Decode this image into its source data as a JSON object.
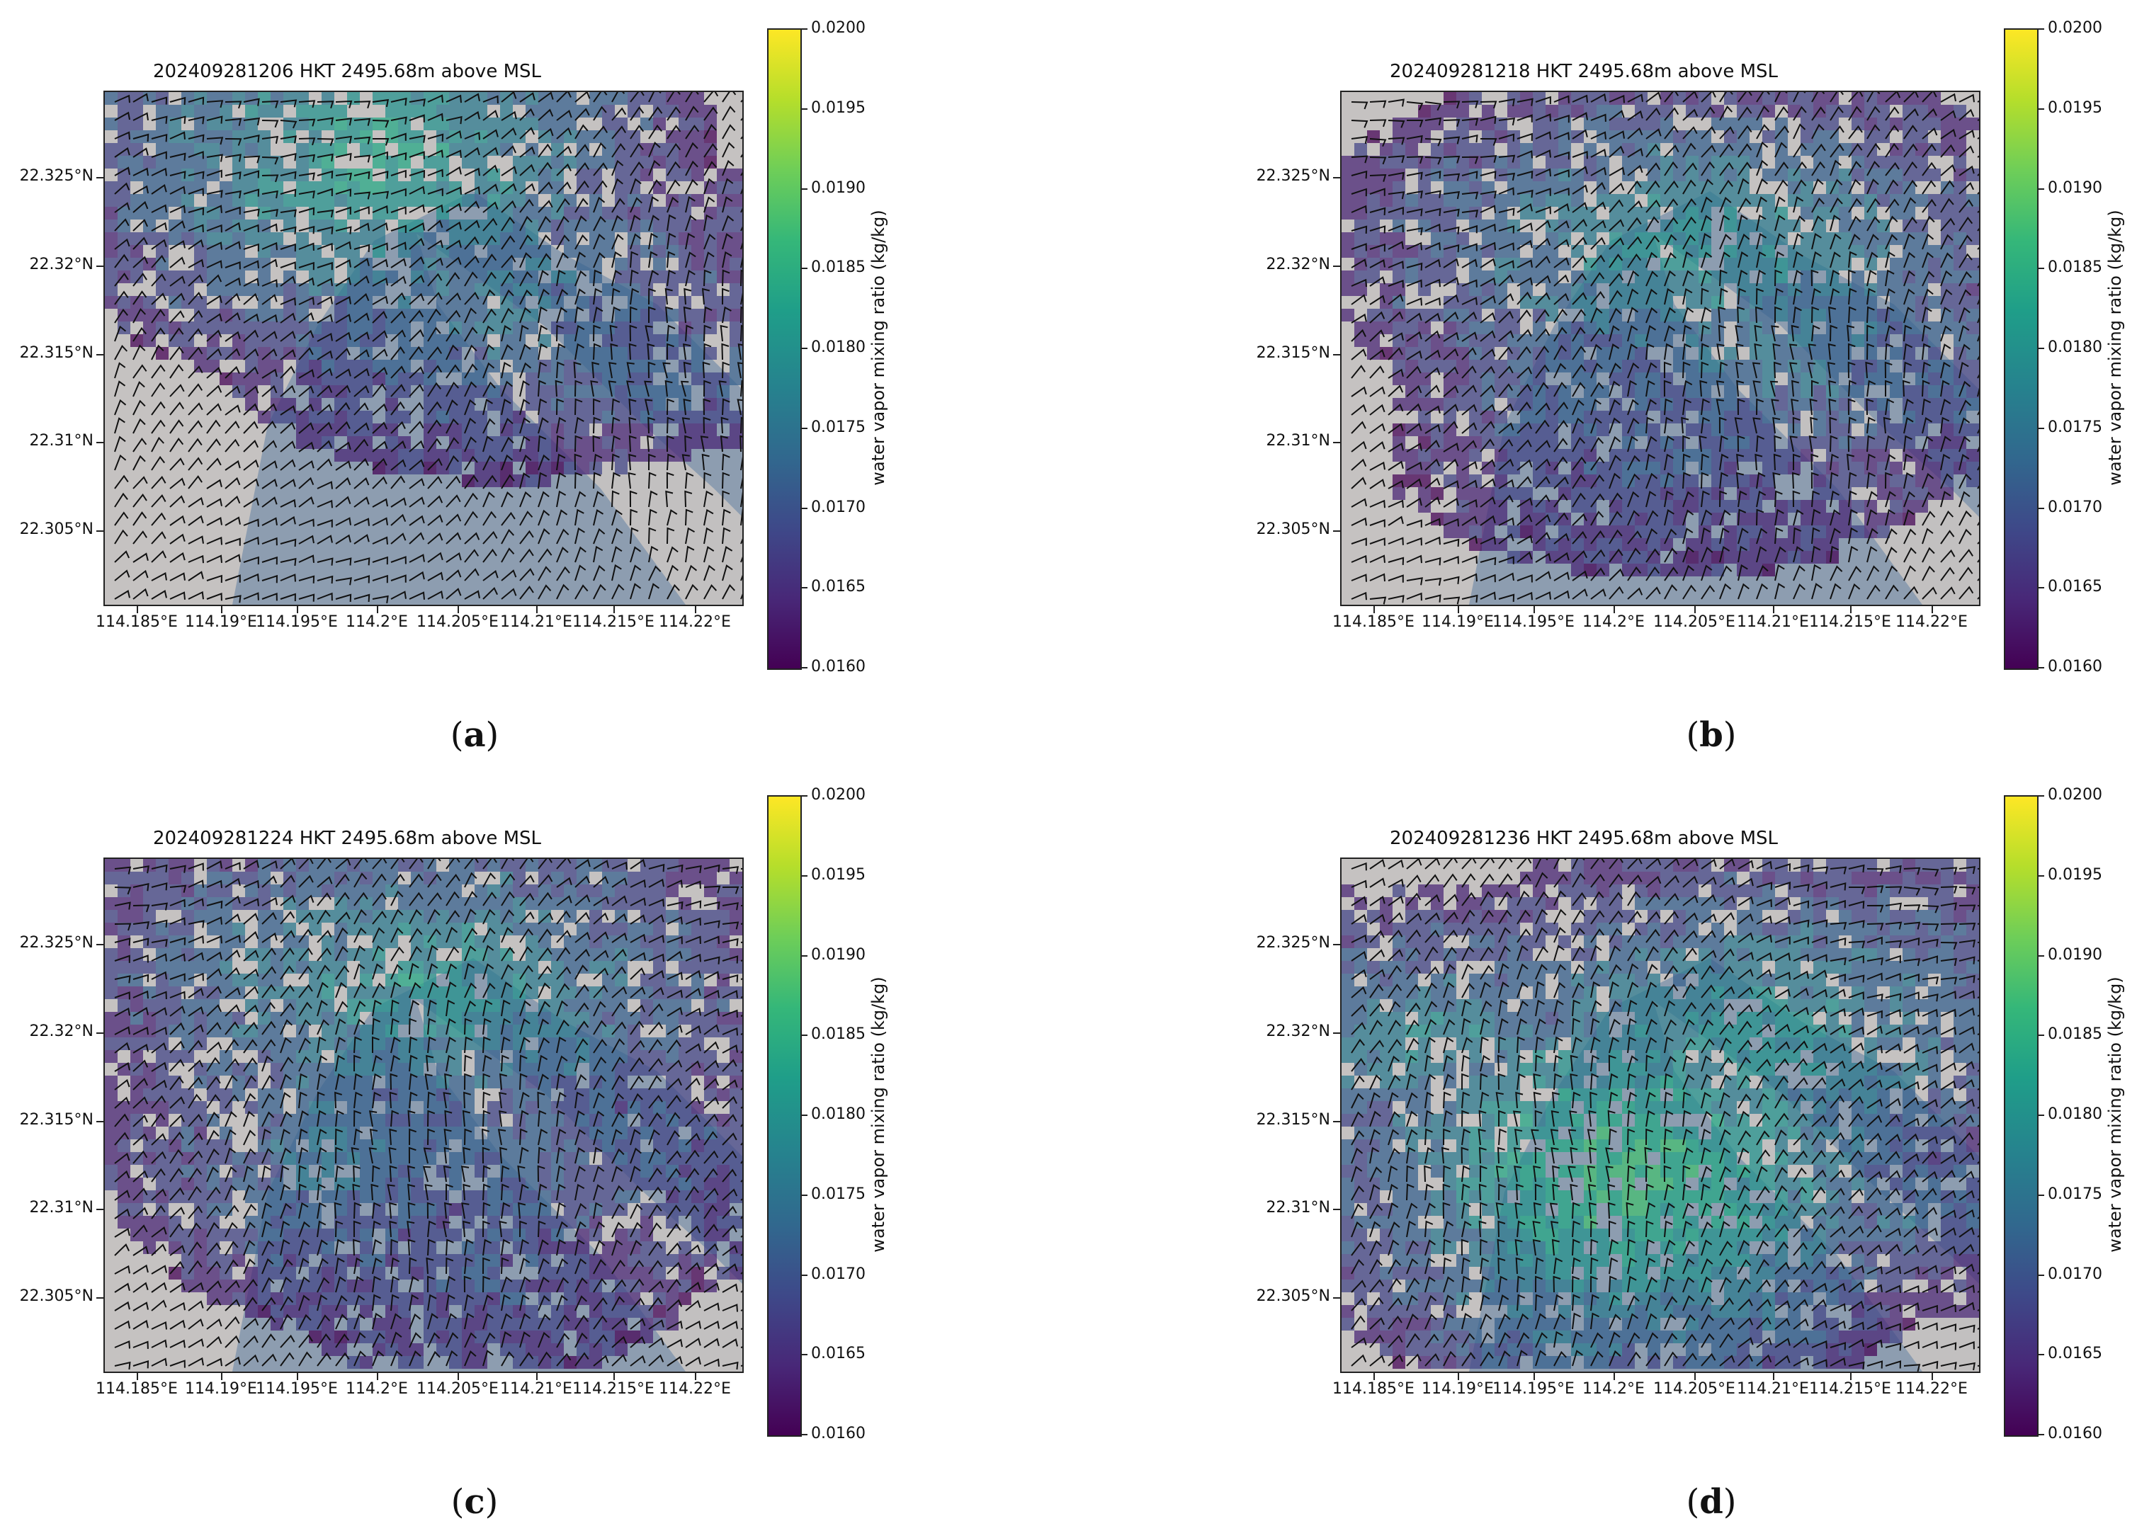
{
  "figure": {
    "panels": [
      {
        "id": "a",
        "caption_letter": "a",
        "title": "202409281206 HKT 2495.68m above MSL"
      },
      {
        "id": "b",
        "caption_letter": "b",
        "title": "202409281218 HKT 2495.68m above MSL"
      },
      {
        "id": "c",
        "caption_letter": "c",
        "title": "202409281224 HKT 2495.68m above MSL"
      },
      {
        "id": "d",
        "caption_letter": "d",
        "title": "202409281236 HKT 2495.68m above MSL"
      }
    ],
    "y_ticks": [
      "22.325°N",
      "22.32°N",
      "22.315°N",
      "22.31°N",
      "22.305°N"
    ],
    "x_ticks": [
      "114.185°E",
      "114.19°E",
      "114.195°E",
      "114.2°E",
      "114.205°E",
      "114.21°E",
      "114.215°E",
      "114.22°E"
    ],
    "colorbar": {
      "label": "water vapor mixing ratio (kg/kg)",
      "ticks": [
        "0.0200",
        "0.0195",
        "0.0190",
        "0.0185",
        "0.0180",
        "0.0175",
        "0.0170",
        "0.0165",
        "0.0160"
      ],
      "range": [
        0.016,
        0.02
      ],
      "colormap": "viridis"
    },
    "colors": {
      "water": "#8d9db0",
      "land": "#cfc9c4",
      "barb": "#111111"
    }
  }
}
